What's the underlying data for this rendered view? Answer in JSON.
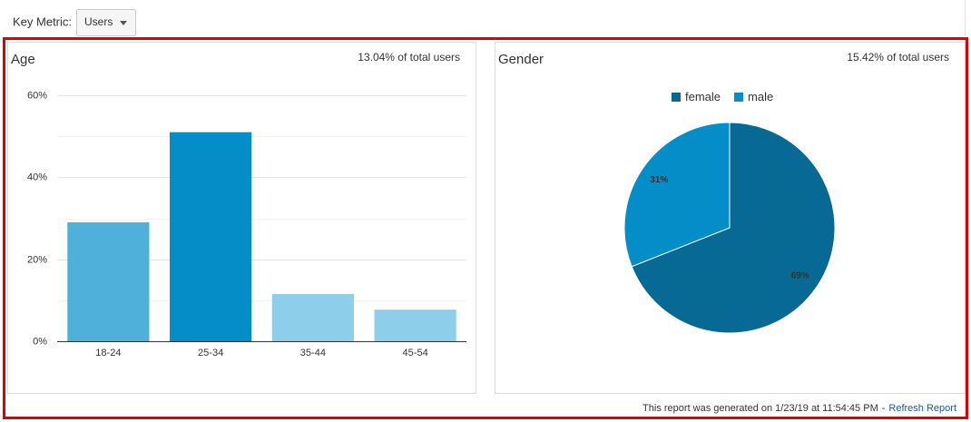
{
  "toolbar": {
    "key_metric_label": "Key Metric:",
    "key_metric_value": "Users"
  },
  "chart_data": [
    {
      "type": "bar",
      "title": "Age",
      "subtitle": "13.04% of total users",
      "categories": [
        "18-24",
        "25-34",
        "35-44",
        "45-54"
      ],
      "values": [
        29,
        51,
        11.5,
        7.7
      ],
      "colors": [
        "#4fb0da",
        "#058dc7",
        "#8dcfeb",
        "#8dcfeb"
      ],
      "ylim": [
        0,
        60
      ],
      "yticks": [
        {
          "value": 0,
          "label": "0%"
        },
        {
          "value": 20,
          "label": "20%"
        },
        {
          "value": 40,
          "label": "40%"
        },
        {
          "value": 60,
          "label": "60%"
        }
      ],
      "minor_yticks": [
        10,
        30,
        50
      ],
      "grid": true
    },
    {
      "type": "pie",
      "title": "Gender",
      "subtitle": "15.42% of total users",
      "categories": [
        "female",
        "male"
      ],
      "values": [
        69,
        31
      ],
      "value_labels": [
        "69%",
        "31%"
      ],
      "colors": [
        "#066a95",
        "#058dc7"
      ],
      "legend": "top"
    }
  ],
  "footer": {
    "text": "This report was generated on 1/23/19 at 11:54:45 PM",
    "separator": "-",
    "link": "Refresh Report"
  }
}
